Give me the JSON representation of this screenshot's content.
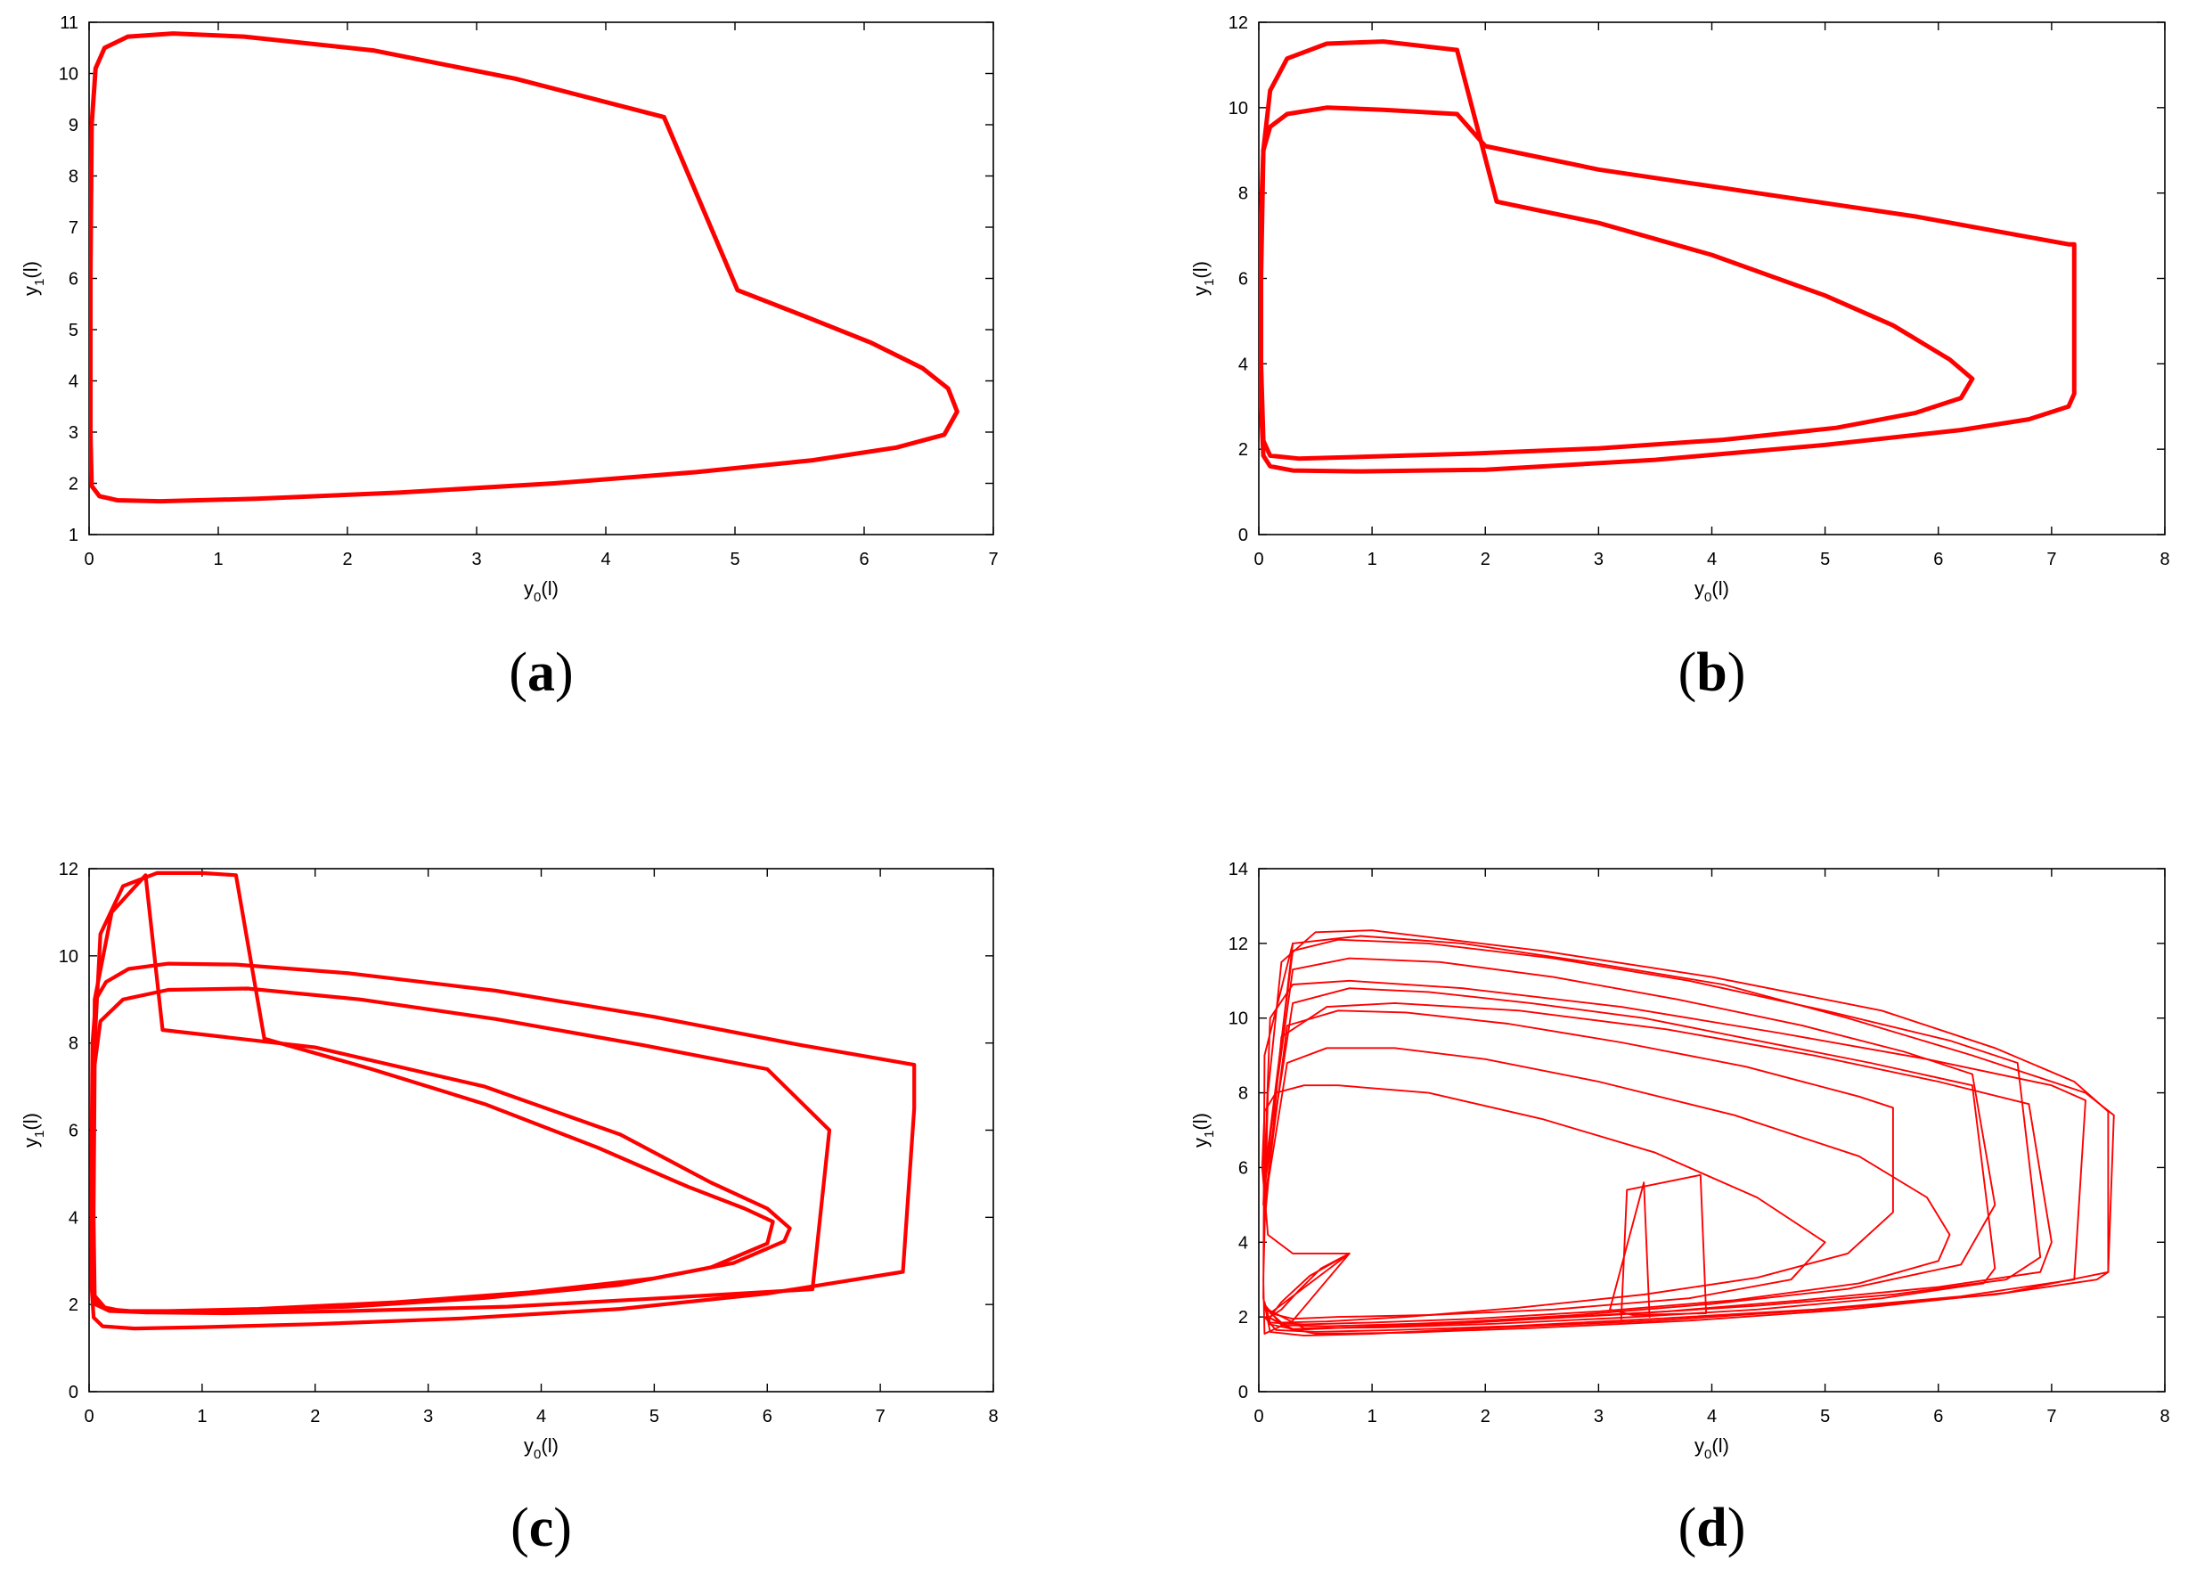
{
  "panels": [
    {
      "label": "a",
      "chart_data": {
        "type": "line",
        "xlabel": "y0(l)",
        "ylabel": "y1(l)",
        "xlim": [
          0,
          7
        ],
        "ylim": [
          1,
          11
        ],
        "xticks": [
          "0",
          "1",
          "2",
          "3",
          "4",
          "5",
          "6",
          "7"
        ],
        "yticks": [
          "1",
          "2",
          "3",
          "4",
          "5",
          "6",
          "7",
          "8",
          "9",
          "10",
          "11"
        ],
        "grid": false,
        "line_color": "#ff0000",
        "series": [
          {
            "x": [
              4.45,
              5.02,
              5.55,
              6.05,
              6.45,
              6.65,
              6.72,
              6.62,
              6.25,
              5.6,
              4.7,
              3.6,
              2.4,
              1.3,
              0.55,
              0.22,
              0.08,
              0.02,
              0.01,
              0.01,
              0.02,
              0.05,
              0.12,
              0.3,
              0.65,
              1.2,
              2.2,
              3.3,
              4.45
            ],
            "y": [
              9.15,
              5.77,
              5.25,
              4.75,
              4.25,
              3.85,
              3.4,
              2.95,
              2.7,
              2.45,
              2.22,
              2.0,
              1.82,
              1.7,
              1.65,
              1.67,
              1.75,
              1.95,
              3.0,
              6.0,
              9.0,
              10.1,
              10.5,
              10.72,
              10.78,
              10.72,
              10.45,
              9.9,
              9.15
            ]
          }
        ]
      }
    },
    {
      "label": "b",
      "chart_data": {
        "type": "line",
        "xlabel": "y0(l)",
        "ylabel": "y1(l)",
        "xlim": [
          0,
          8
        ],
        "ylim": [
          0,
          12
        ],
        "xticks": [
          "0",
          "1",
          "2",
          "3",
          "4",
          "5",
          "6",
          "7",
          "8"
        ],
        "yticks": [
          "0",
          "2",
          "4",
          "6",
          "8",
          "10",
          "12"
        ],
        "grid": false,
        "line_color": "#ff0000",
        "series": [
          {
            "x": [
              1.75,
              2.1,
              3.0,
              4.0,
              5.0,
              5.6,
              6.1,
              6.3,
              6.2,
              5.8,
              5.1,
              4.1,
              3.0,
              1.9,
              0.9,
              0.35,
              0.1,
              0.04,
              0.02,
              0.02,
              0.04,
              0.1,
              0.25,
              0.6,
              1.1,
              1.75
            ],
            "y": [
              11.35,
              7.8,
              7.3,
              6.55,
              5.6,
              4.9,
              4.1,
              3.65,
              3.2,
              2.85,
              2.5,
              2.22,
              2.02,
              1.9,
              1.82,
              1.78,
              1.85,
              2.2,
              4.0,
              7.5,
              9.0,
              9.55,
              9.85,
              10.0,
              9.95,
              9.85
            ]
          },
          {
            "x": [
              1.75,
              1.1,
              0.6,
              0.25,
              0.1,
              0.04,
              0.02,
              0.02,
              0.04,
              0.1,
              0.3,
              0.9,
              2.0,
              3.5,
              5.0,
              6.2,
              6.8,
              7.15,
              7.2,
              7.2,
              7.15,
              5.8,
              4.4,
              3.0,
              2.0,
              1.75
            ],
            "y": [
              11.35,
              11.55,
              11.5,
              11.15,
              10.4,
              9.0,
              6.0,
              3.0,
              1.85,
              1.6,
              1.5,
              1.48,
              1.52,
              1.75,
              2.1,
              2.45,
              2.7,
              3.0,
              3.3,
              6.8,
              6.8,
              7.45,
              8.0,
              8.55,
              9.1,
              9.85
            ]
          }
        ]
      }
    },
    {
      "label": "c",
      "chart_data": {
        "type": "line",
        "xlabel": "y0(l)",
        "ylabel": "y1(l)",
        "xlim": [
          0,
          8
        ],
        "ylim": [
          0,
          12
        ],
        "xticks": [
          "0",
          "1",
          "2",
          "3",
          "4",
          "5",
          "6",
          "7",
          "8"
        ],
        "yticks": [
          "0",
          "2",
          "4",
          "6",
          "8",
          "10",
          "12"
        ],
        "grid": false,
        "line_color": "#ff0000",
        "series": [
          {
            "x": [
              1.55,
              2.5,
              3.5,
              4.5,
              5.3,
              5.8,
              6.05,
              6.0,
              5.5,
              4.7,
              3.5,
              2.3,
              1.2,
              0.5,
              0.18,
              0.06,
              0.03,
              0.02,
              0.03,
              0.06,
              0.15,
              0.35,
              0.7,
              1.3,
              2.3,
              3.6,
              5.0,
              6.3,
              7.3,
              7.3,
              7.2,
              6.0,
              4.7,
              3.3,
              2.0,
              1.0,
              0.4,
              0.12,
              0.04,
              0.02,
              0.03,
              0.1,
              0.3,
              0.6,
              1.0,
              1.3,
              1.55
            ],
            "y": [
              8.1,
              7.4,
              6.6,
              5.6,
              4.7,
              4.2,
              3.9,
              3.4,
              2.85,
              2.45,
              2.15,
              1.95,
              1.85,
              1.82,
              1.85,
              2.0,
              2.6,
              5.0,
              8.0,
              9.0,
              9.4,
              9.7,
              9.82,
              9.8,
              9.6,
              9.2,
              8.6,
              7.95,
              7.5,
              6.5,
              2.75,
              2.25,
              1.9,
              1.68,
              1.55,
              1.48,
              1.45,
              1.5,
              1.7,
              2.5,
              7.0,
              10.5,
              11.6,
              11.9,
              11.9,
              11.85,
              8.1
            ]
          },
          {
            "x": [
              0.5,
              0.65,
              2.0,
              3.5,
              4.7,
              5.5,
              6.0,
              6.2,
              6.15,
              5.7,
              5.0,
              3.9,
              2.7,
              1.5,
              0.7,
              0.3,
              0.1,
              0.05,
              0.04,
              0.05,
              0.1,
              0.3,
              0.7,
              1.4,
              2.4,
              3.6,
              4.9,
              6.0,
              6.55,
              6.55,
              6.4,
              5.1,
              3.7,
              2.3,
              1.2,
              0.5,
              0.15,
              0.05,
              0.03,
              0.05,
              0.2,
              0.5
            ],
            "y": [
              11.85,
              8.3,
              7.9,
              7.0,
              5.9,
              4.8,
              4.2,
              3.75,
              3.45,
              2.95,
              2.6,
              2.28,
              2.05,
              1.9,
              1.85,
              1.85,
              1.95,
              2.2,
              4.0,
              7.5,
              8.5,
              9.0,
              9.22,
              9.25,
              9.0,
              8.55,
              7.95,
              7.4,
              6.0,
              6.0,
              2.35,
              2.15,
              1.95,
              1.85,
              1.8,
              1.82,
              1.9,
              2.2,
              5.0,
              9.0,
              11.0,
              11.85
            ]
          }
        ]
      }
    },
    {
      "label": "d",
      "chart_data": {
        "type": "line",
        "xlabel": "y0(l)",
        "ylabel": "y1(l)",
        "xlim": [
          0,
          8
        ],
        "ylim": [
          0,
          14
        ],
        "xticks": [
          "0",
          "1",
          "2",
          "3",
          "4",
          "5",
          "6",
          "7",
          "8"
        ],
        "yticks": [
          "0",
          "2",
          "4",
          "6",
          "8",
          "10",
          "12",
          "14"
        ],
        "grid": false,
        "line_color": "#ff0000",
        "series": [
          {
            "x": [
              0.8,
              0.3,
              0.08,
              0.03,
              0.05,
              0.15,
              0.4,
              0.7,
              1.5,
              2.5,
              3.5,
              4.4,
              5.0,
              4.7,
              3.8,
              2.6,
              1.5,
              0.7,
              0.3,
              0.1,
              0.8
            ],
            "y": [
              3.7,
              3.7,
              4.2,
              6.0,
              7.5,
              8.0,
              8.2,
              8.2,
              8.0,
              7.3,
              6.4,
              5.2,
              4.0,
              3.0,
              2.5,
              2.2,
              2.05,
              2.0,
              1.95,
              2.1,
              3.7
            ]
          },
          {
            "x": [
              0.8,
              0.3,
              0.05,
              0.04,
              0.08,
              0.2,
              0.5,
              1.0,
              2.5,
              4.0,
              5.5,
              6.5,
              7.2,
              7.5,
              7.5,
              7.4,
              6.5,
              5.0,
              3.5,
              2.0,
              1.0,
              0.4,
              0.1,
              0.04,
              0.05,
              0.3
            ],
            "y": [
              3.7,
              1.9,
              1.55,
              3.0,
              8.0,
              11.5,
              12.3,
              12.35,
              11.8,
              11.1,
              10.2,
              9.2,
              8.3,
              7.5,
              3.2,
              3.0,
              2.6,
              2.2,
              1.9,
              1.7,
              1.55,
              1.5,
              1.6,
              2.5,
              9.0,
              12.0
            ]
          },
          {
            "x": [
              0.04,
              0.1,
              0.3,
              0.8,
              1.8,
              3.2,
              4.6,
              5.9,
              7.0,
              7.3,
              7.2,
              6.2,
              4.9,
              3.5,
              2.2,
              1.2,
              0.5,
              0.15,
              0.05
            ],
            "y": [
              5.0,
              10.0,
              10.9,
              11.0,
              10.8,
              10.3,
              9.6,
              8.9,
              8.2,
              7.8,
              3.0,
              2.55,
              2.2,
              1.95,
              1.75,
              1.65,
              1.6,
              1.65,
              2.0
            ]
          },
          {
            "x": [
              0.05,
              0.2,
              0.6,
              1.2,
              2.3,
              3.6,
              4.9,
              6.0,
              6.8,
              7.0,
              6.9,
              6.0,
              4.8,
              3.6,
              2.4,
              1.4,
              0.6,
              0.2,
              0.06
            ],
            "y": [
              4.5,
              9.5,
              10.3,
              10.4,
              10.2,
              9.7,
              9.0,
              8.3,
              7.7,
              4.0,
              3.2,
              2.8,
              2.45,
              2.15,
              1.95,
              1.82,
              1.75,
              1.78,
              2.3
            ]
          },
          {
            "x": [
              0.05,
              0.25,
              0.6,
              1.2,
              2.0,
              3.0,
              4.2,
              5.3,
              5.9,
              6.1,
              6.0,
              5.3,
              4.2,
              3.0,
              1.9,
              1.0,
              0.4,
              0.1,
              0.05
            ],
            "y": [
              5.0,
              8.8,
              9.2,
              9.2,
              8.9,
              8.3,
              7.4,
              6.3,
              5.2,
              4.2,
              3.5,
              2.9,
              2.45,
              2.15,
              1.95,
              1.85,
              1.8,
              1.85,
              2.4
            ]
          },
          {
            "x": [
              0.06,
              0.3,
              0.7,
              1.5,
              2.6,
              3.8,
              5.0,
              6.1,
              6.7,
              6.9,
              6.6,
              5.6,
              4.4,
              3.1,
              1.9,
              0.9,
              0.3,
              0.08
            ],
            "y": [
              6.0,
              11.8,
              12.1,
              12.0,
              11.6,
              11.0,
              10.2,
              9.4,
              8.8,
              3.6,
              3.0,
              2.6,
              2.3,
              2.05,
              1.85,
              1.72,
              1.68,
              2.0
            ]
          },
          {
            "x": [
              0.05,
              0.3,
              0.8,
              1.5,
              2.4,
              3.4,
              4.4,
              5.4,
              6.3,
              6.5,
              6.4,
              5.5,
              4.4,
              3.2,
              2.1,
              1.1,
              0.4,
              0.08
            ],
            "y": [
              5.5,
              10.4,
              10.8,
              10.7,
              10.4,
              10.0,
              9.4,
              8.8,
              8.2,
              3.3,
              2.9,
              2.5,
              2.2,
              1.98,
              1.82,
              1.72,
              1.7,
              2.2
            ]
          },
          {
            "x": [
              0.05,
              0.25,
              0.7,
              1.3,
              2.2,
              3.2,
              4.3,
              5.3,
              5.6,
              5.6,
              5.2,
              4.4,
              3.4,
              2.3,
              1.3,
              0.6,
              0.2,
              0.07
            ],
            "y": [
              5.0,
              9.8,
              10.2,
              10.15,
              9.85,
              9.35,
              8.7,
              7.9,
              7.6,
              4.8,
              3.7,
              3.05,
              2.6,
              2.25,
              2.0,
              1.88,
              1.85,
              2.2
            ]
          },
          {
            "x": [
              0.06,
              0.3,
              0.8,
              1.6,
              2.6,
              3.7,
              4.8,
              5.7,
              6.3,
              6.5,
              6.2,
              5.2,
              4.0,
              2.8,
              1.7,
              0.8,
              0.3,
              0.08
            ],
            "y": [
              6.0,
              11.3,
              11.6,
              11.5,
              11.1,
              10.5,
              9.8,
              9.1,
              8.5,
              5.0,
              3.4,
              2.75,
              2.35,
              2.05,
              1.85,
              1.72,
              1.65,
              2.0
            ]
          },
          {
            "x": [
              0.05,
              0.3,
              0.9,
              1.8,
              2.9,
              4.1,
              5.2,
              6.3,
              7.3,
              7.55,
              7.5,
              6.6,
              5.2,
              3.8,
              2.4,
              1.3,
              0.5,
              0.1
            ],
            "y": [
              5.5,
              12.0,
              12.2,
              12.0,
              11.5,
              10.9,
              10.0,
              9.0,
              8.0,
              7.4,
              3.2,
              2.65,
              2.2,
              1.9,
              1.7,
              1.58,
              1.55,
              1.8
            ]
          },
          {
            "x": [
              0.8,
              0.45,
              0.2,
              0.1,
              0.2,
              0.35,
              0.55,
              0.8
            ],
            "y": [
              3.7,
              3.1,
              2.4,
              2.0,
              2.2,
              2.7,
              3.3,
              3.7
            ]
          },
          {
            "x": [
              3.2,
              3.25,
              3.9,
              3.95,
              3.3,
              3.1,
              3.4,
              3.45
            ],
            "y": [
              1.95,
              5.4,
              5.8,
              2.1,
              2.05,
              2.2,
              5.6,
              2.0
            ]
          }
        ]
      }
    }
  ]
}
